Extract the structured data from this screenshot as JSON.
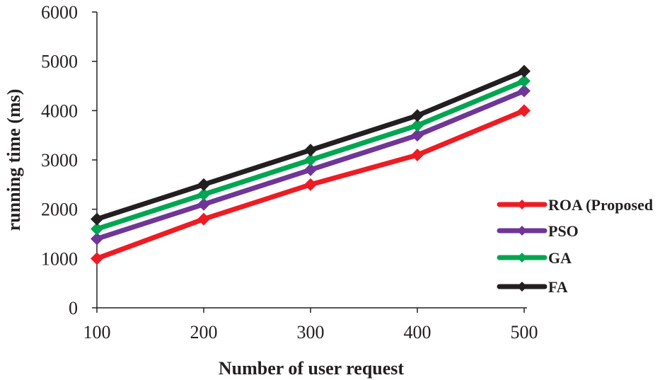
{
  "chart_data": {
    "type": "line",
    "title": "",
    "xlabel": "Number of user request",
    "ylabel": "running time (ms)",
    "x": [
      100,
      200,
      300,
      400,
      500
    ],
    "xticks": [
      "100",
      "200",
      "300",
      "400",
      "500"
    ],
    "yticks": [
      "0",
      "1000",
      "2000",
      "3000",
      "4000",
      "5000",
      "6000"
    ],
    "ylim": [
      0,
      6000
    ],
    "grid": false,
    "legend_placement": "right",
    "marker": "diamond",
    "series": [
      {
        "name": "ROA (Proposed",
        "color": "#ed1c24",
        "values": [
          1000,
          1800,
          2500,
          3100,
          4000
        ]
      },
      {
        "name": "PSO",
        "color": "#6f3597",
        "values": [
          1400,
          2100,
          2800,
          3500,
          4400
        ]
      },
      {
        "name": "GA",
        "color": "#00a651",
        "values": [
          1600,
          2300,
          3000,
          3700,
          4600
        ]
      },
      {
        "name": "FA",
        "color": "#231f20",
        "values": [
          1800,
          2500,
          3200,
          3900,
          4800
        ]
      }
    ]
  }
}
